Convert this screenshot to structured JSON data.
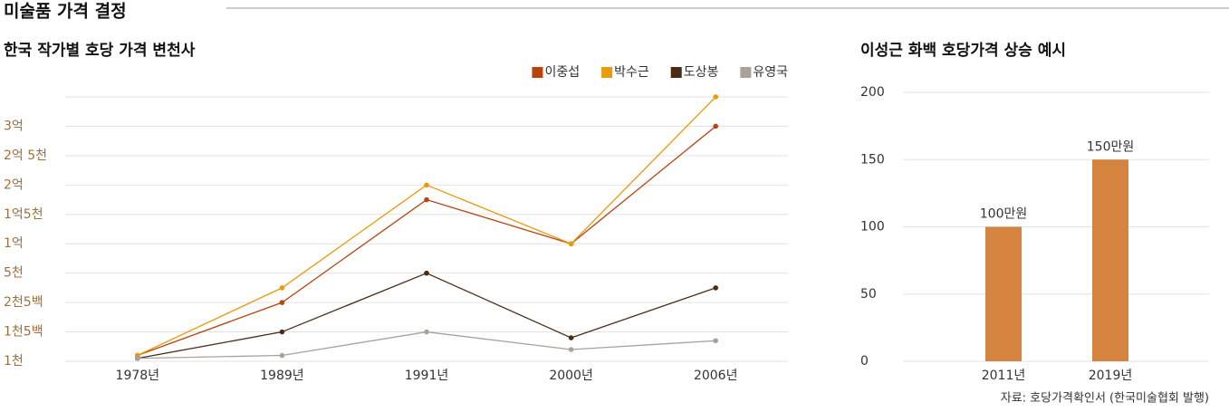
{
  "header": {
    "title": "미술품 가격 결정"
  },
  "chart_data": [
    {
      "type": "line",
      "title": "한국 작가별 호당 가격 변천사",
      "categories": [
        "1978년",
        "1989년",
        "1991년",
        "2000년",
        "2006년"
      ],
      "series": [
        {
          "name": "이중섭",
          "color": "#b8430f",
          "values": [
            1100,
            2500,
            17500,
            10000,
            30000
          ]
        },
        {
          "name": "박수근",
          "color": "#e99a0f",
          "values": [
            1100,
            3750,
            20000,
            10000,
            35000
          ]
        },
        {
          "name": "도상봉",
          "color": "#4a2c14",
          "values": [
            1050,
            1500,
            5000,
            1400,
            3750
          ]
        },
        {
          "name": "유영국",
          "color": "#a8a39a",
          "values": [
            1050,
            1100,
            1500,
            1200,
            1350
          ]
        }
      ],
      "ylim": [
        1000,
        35000
      ],
      "yticks": [
        {
          "value": 1000,
          "label": "1천"
        },
        {
          "value": 1500,
          "label": "1천5백"
        },
        {
          "value": 2500,
          "label": "2천5백"
        },
        {
          "value": 5000,
          "label": "5천"
        },
        {
          "value": 10000,
          "label": "1억"
        },
        {
          "value": 15000,
          "label": "1억5천"
        },
        {
          "value": 20000,
          "label": "2억"
        },
        {
          "value": 25000,
          "label": "2억 5천"
        },
        {
          "value": 30000,
          "label": "3억"
        }
      ],
      "grid": true,
      "legend": "top-right"
    },
    {
      "type": "bar",
      "title": "이성근 화백 호당가격 상승 예시",
      "categories": [
        "2011년",
        "2019년"
      ],
      "values": [
        100,
        150
      ],
      "value_labels": [
        "100만원",
        "150만원"
      ],
      "color": "#d4843e",
      "ylim": [
        0,
        200
      ],
      "yticks": [
        0,
        50,
        100,
        150,
        200
      ],
      "grid": true,
      "source": "자료: 호당가격확인서 (한국미술협회 발행)"
    }
  ]
}
